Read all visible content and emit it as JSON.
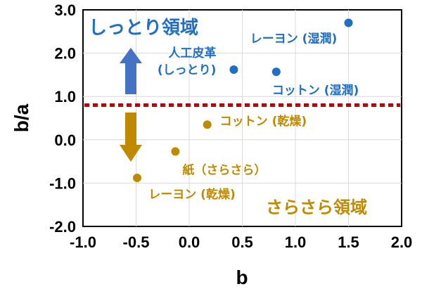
{
  "chart_data": {
    "type": "scatter",
    "xlabel": "b",
    "ylabel": "b/a",
    "xlim": [
      -1.0,
      2.0
    ],
    "ylim": [
      -2.0,
      3.0
    ],
    "x_ticks": [
      "-1.0",
      "-0.5",
      "0.0",
      "0.5",
      "1.0",
      "1.5",
      "2.0"
    ],
    "y_ticks": [
      "-2.0",
      "-1.0",
      "0.0",
      "1.0",
      "2.0",
      "3.0"
    ],
    "x_tick_values": [
      -1.0,
      -0.5,
      0.0,
      0.5,
      1.0,
      1.5,
      2.0
    ],
    "y_tick_values": [
      -2.0,
      -1.0,
      0.0,
      1.0,
      2.0,
      3.0
    ],
    "threshold": 0.8,
    "colors": {
      "moist": "#1f6fc5",
      "dry": "#c08a00",
      "threshold": "#c00000",
      "arrow_up": "#4472c4",
      "arrow_down": "#c08a00"
    },
    "regions": {
      "moist": "しっとり領域",
      "dry": "さらさら領域"
    },
    "points": [
      {
        "label": [
          "レーヨン (湿潤)"
        ],
        "x": 1.5,
        "y": 2.7,
        "group": "moist"
      },
      {
        "label": [
          "人工皮革",
          "(しっとり)"
        ],
        "x": 0.42,
        "y": 1.62,
        "group": "moist"
      },
      {
        "label": [
          "コットン (湿潤)"
        ],
        "x": 0.82,
        "y": 1.57,
        "group": "moist"
      },
      {
        "label": [
          "コットン (乾燥)"
        ],
        "x": 0.17,
        "y": 0.35,
        "group": "dry"
      },
      {
        "label": [
          "紙（さらさら）"
        ],
        "x": -0.13,
        "y": -0.27,
        "group": "dry"
      },
      {
        "label": [
          "レーヨン (乾燥)"
        ],
        "x": -0.49,
        "y": -0.88,
        "group": "dry"
      }
    ]
  }
}
